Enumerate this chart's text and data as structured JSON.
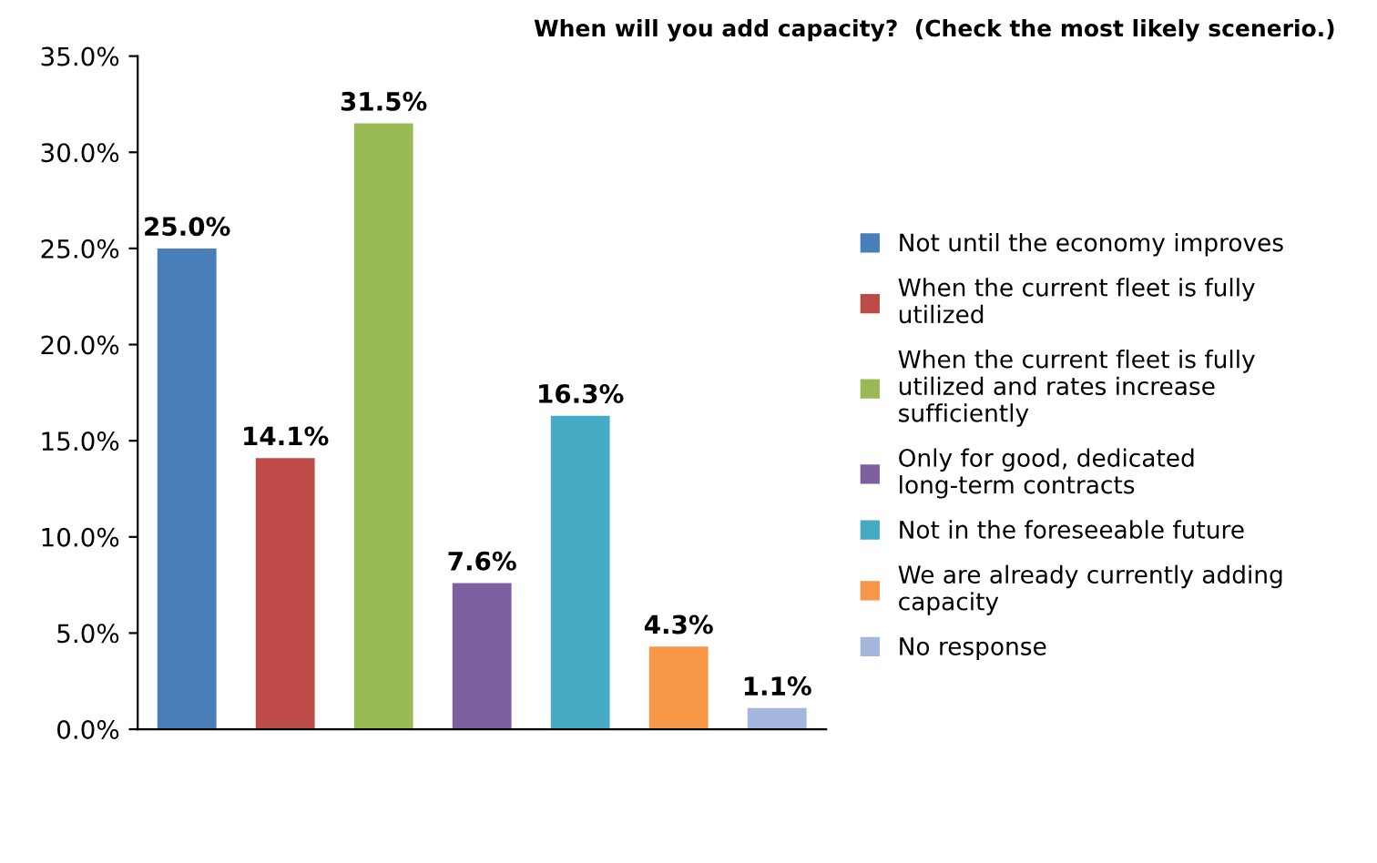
{
  "chart_data": {
    "type": "bar",
    "title": "When will you add capacity?  (Check the most likely scenerio.)",
    "categories": [
      null,
      null,
      null,
      null,
      null,
      null,
      null
    ],
    "series": [
      {
        "name": "Not until the economy improves",
        "color": "#4a7ebb",
        "values": [
          25.0,
          null,
          null,
          null,
          null,
          null,
          null
        ],
        "value_labels": [
          "25.0%",
          null,
          null,
          null,
          null,
          null,
          null
        ]
      },
      {
        "name": "When the current fleet is fully utilized",
        "color": "#be4b48",
        "values": [
          null,
          14.1,
          null,
          null,
          null,
          null,
          null
        ],
        "value_labels": [
          null,
          "14.1%",
          null,
          null,
          null,
          null,
          null
        ]
      },
      {
        "name": "When the current fleet is fully utilized and rates increase sufficiently",
        "color": "#98b954",
        "values": [
          null,
          null,
          31.5,
          null,
          null,
          null,
          null
        ],
        "value_labels": [
          null,
          null,
          "31.5%",
          null,
          null,
          null,
          null
        ]
      },
      {
        "name": "Only for good, dedicated long-term contracts",
        "color": "#7d60a0",
        "values": [
          null,
          null,
          null,
          7.6,
          null,
          null,
          null
        ],
        "value_labels": [
          null,
          null,
          null,
          "7.6%",
          null,
          null,
          null
        ]
      },
      {
        "name": "Not in the foreseeable future",
        "color": "#46aac5",
        "values": [
          null,
          null,
          null,
          null,
          16.3,
          null,
          null
        ],
        "value_labels": [
          null,
          null,
          null,
          null,
          "16.3%",
          null,
          null
        ]
      },
      {
        "name": "We are already currently adding capacity",
        "color": "#f79646",
        "values": [
          null,
          null,
          null,
          null,
          null,
          4.3,
          null
        ],
        "value_labels": [
          null,
          null,
          null,
          null,
          null,
          "4.3%",
          null
        ]
      },
      {
        "name": "No response",
        "color": "#a5b6de",
        "values": [
          null,
          null,
          null,
          null,
          null,
          null,
          1.1
        ],
        "value_labels": [
          null,
          null,
          null,
          null,
          null,
          null,
          "1.1%"
        ]
      }
    ],
    "ylim": [
      0,
      35
    ],
    "yticks": [
      {
        "value": 0,
        "label": "0.0%"
      },
      {
        "value": 5,
        "label": "5.0%"
      },
      {
        "value": 10,
        "label": "10.0%"
      },
      {
        "value": 15,
        "label": "15.0%"
      },
      {
        "value": 20,
        "label": "20.0%"
      },
      {
        "value": 25,
        "label": "25.0%"
      },
      {
        "value": 30,
        "label": "30.0%"
      },
      {
        "value": 35,
        "label": "35.0%"
      }
    ],
    "grid": false,
    "legend": "right"
  }
}
